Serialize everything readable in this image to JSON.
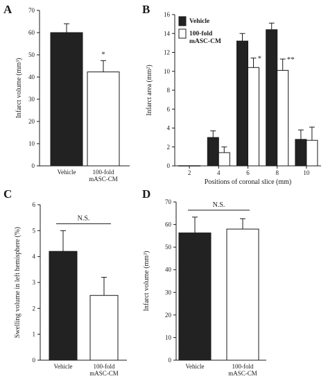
{
  "panels": [
    {
      "id": "A",
      "letter": "A",
      "ylabel": "Infarct volume (mm³)",
      "ylim": [
        0,
        70
      ],
      "yticks": [
        0,
        10,
        20,
        30,
        40,
        50,
        60,
        70
      ],
      "categories": [
        "Vehicle",
        "100-fold\nmASC-CM"
      ],
      "bars": [
        {
          "value": 60.0,
          "error": 4.0,
          "fill": "#222222"
        },
        {
          "value": 42.3,
          "error": 5.1,
          "fill": "#ffffff"
        }
      ],
      "annotations": [
        {
          "bar": 1,
          "text": "*"
        }
      ]
    },
    {
      "id": "B",
      "letter": "B",
      "ylabel": "Infarct area (mm²)",
      "xlabel": "Positions of coronal slice (mm)",
      "ylim": [
        0,
        16
      ],
      "yticks": [
        0,
        2,
        4,
        6,
        8,
        10,
        12,
        14,
        16
      ],
      "groups": [
        "2",
        "4",
        "6",
        "8",
        "10"
      ],
      "series": [
        {
          "name": "Vehicle",
          "fill": "#222222",
          "values": [
            0,
            3.0,
            13.2,
            14.4,
            2.8
          ],
          "errors": [
            0,
            0.7,
            0.8,
            0.7,
            1.0
          ]
        },
        {
          "name": "100-fold\nmASC-CM",
          "fill": "#ffffff",
          "values": [
            0,
            1.4,
            10.4,
            10.1,
            2.7
          ],
          "errors": [
            0,
            0.6,
            1.0,
            1.2,
            1.4
          ]
        }
      ],
      "annotations": [
        {
          "group": 2,
          "series": 1,
          "text": "*"
        },
        {
          "group": 3,
          "series": 1,
          "text": "**"
        }
      ]
    },
    {
      "id": "C",
      "letter": "C",
      "ylabel": "Swelling volume in left hemisphere (%)",
      "ylim": [
        0,
        6
      ],
      "yticks": [
        0,
        1,
        2,
        3,
        4,
        5,
        6
      ],
      "categories": [
        "Vehicle",
        "100-fold\nmASC-CM"
      ],
      "bars": [
        {
          "value": 4.2,
          "error": 0.8,
          "fill": "#222222"
        },
        {
          "value": 2.5,
          "error": 0.7,
          "fill": "#ffffff"
        }
      ],
      "ns_label": "N.S."
    },
    {
      "id": "D",
      "letter": "D",
      "ylabel": "Infarct volume (mm³)",
      "ylim": [
        0,
        70
      ],
      "yticks": [
        0,
        10,
        20,
        30,
        40,
        50,
        60,
        70
      ],
      "categories": [
        "Vehicle",
        "100-fold\nmASC-CM"
      ],
      "bars": [
        {
          "value": 56.3,
          "error": 7.0,
          "fill": "#222222"
        },
        {
          "value": 58.0,
          "error": 4.6,
          "fill": "#ffffff"
        }
      ],
      "ns_label": "N.S."
    }
  ],
  "chart_data": [
    {
      "type": "bar",
      "panel": "A",
      "categories": [
        "Vehicle",
        "100-fold mASC-CM"
      ],
      "values": [
        60.0,
        42.3
      ],
      "errors": [
        4.0,
        5.1
      ],
      "ylabel": "Infarct volume (mm³)",
      "ylim": [
        0,
        70
      ],
      "significance": [
        "",
        "*"
      ]
    },
    {
      "type": "bar",
      "panel": "B",
      "categories": [
        "2",
        "4",
        "6",
        "8",
        "10"
      ],
      "series": [
        {
          "name": "Vehicle",
          "values": [
            0,
            3.0,
            13.2,
            14.4,
            2.8
          ],
          "errors": [
            0,
            0.7,
            0.8,
            0.7,
            1.0
          ]
        },
        {
          "name": "100-fold mASC-CM",
          "values": [
            0,
            1.4,
            10.4,
            10.1,
            2.7
          ],
          "errors": [
            0,
            0.6,
            1.0,
            1.2,
            1.4
          ]
        }
      ],
      "xlabel": "Positions of coronal slice (mm)",
      "ylabel": "Infarct area (mm²)",
      "ylim": [
        0,
        16
      ],
      "legend": "top-left"
    },
    {
      "type": "bar",
      "panel": "C",
      "categories": [
        "Vehicle",
        "100-fold mASC-CM"
      ],
      "values": [
        4.2,
        2.5
      ],
      "errors": [
        0.8,
        0.7
      ],
      "ylabel": "Swelling volume in left hemisphere (%)",
      "ylim": [
        0,
        6
      ],
      "significance": "N.S."
    },
    {
      "type": "bar",
      "panel": "D",
      "categories": [
        "Vehicle",
        "100-fold mASC-CM"
      ],
      "values": [
        56.3,
        58.0
      ],
      "errors": [
        7.0,
        4.6
      ],
      "ylabel": "Infarct volume (mm³)",
      "ylim": [
        0,
        70
      ],
      "significance": "N.S."
    }
  ]
}
